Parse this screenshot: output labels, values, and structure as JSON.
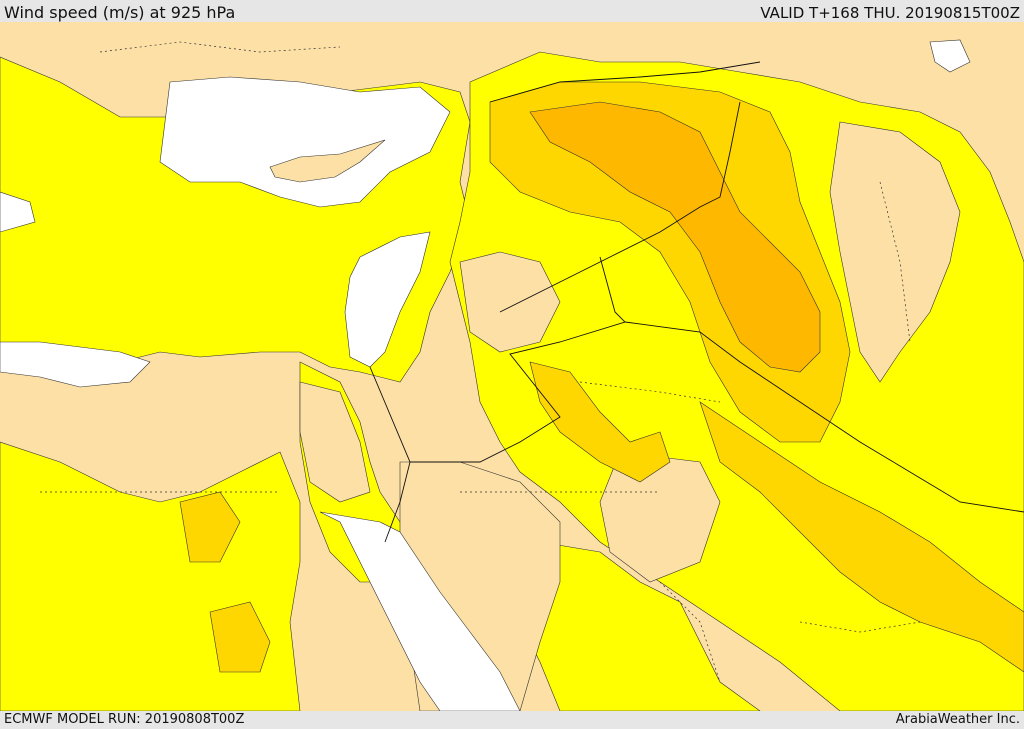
{
  "header": {
    "title": "Wind speed (m/s) at 925 hPa",
    "valid": "VALID T+168 THU. 20190815T00Z"
  },
  "footer": {
    "model_run": "ECMWF MODEL RUN: 20190808T00Z",
    "credit": "ArabiaWeather Inc."
  },
  "colors": {
    "land_calm": "#fde0a6",
    "wind_low": "#ffff00",
    "wind_mid": "#ffd700",
    "wind_high": "#ffb800",
    "water": "#ffffff",
    "background": "#e6e6e6"
  }
}
